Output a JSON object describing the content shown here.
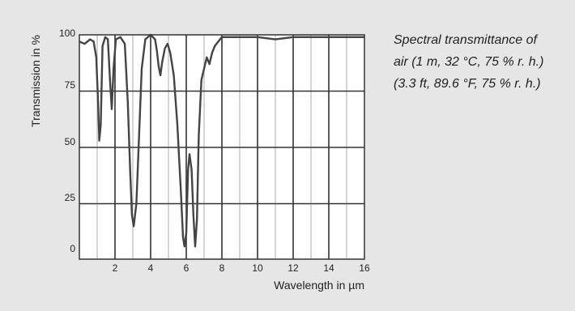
{
  "chart_data": {
    "type": "line",
    "xlabel": "Wavelength in µm",
    "ylabel": "Transmission in %",
    "xlim": [
      0,
      16
    ],
    "ylim": [
      0,
      100
    ],
    "x_ticks": [
      2,
      4,
      6,
      8,
      10,
      12,
      14,
      16
    ],
    "y_ticks": [
      0,
      25,
      50,
      75,
      100
    ],
    "grid": true,
    "series": [
      {
        "values": [
          [
            0.0,
            97
          ],
          [
            0.3,
            96
          ],
          [
            0.6,
            98
          ],
          [
            0.8,
            97
          ],
          [
            0.95,
            90
          ],
          [
            1.05,
            70
          ],
          [
            1.12,
            53
          ],
          [
            1.2,
            60
          ],
          [
            1.3,
            95
          ],
          [
            1.45,
            99
          ],
          [
            1.6,
            98
          ],
          [
            1.72,
            80
          ],
          [
            1.82,
            67
          ],
          [
            1.92,
            85
          ],
          [
            2.05,
            98
          ],
          [
            2.3,
            99
          ],
          [
            2.55,
            96
          ],
          [
            2.72,
            70
          ],
          [
            2.85,
            40
          ],
          [
            2.95,
            20
          ],
          [
            3.05,
            15
          ],
          [
            3.2,
            25
          ],
          [
            3.35,
            55
          ],
          [
            3.5,
            85
          ],
          [
            3.7,
            98
          ],
          [
            4.0,
            100
          ],
          [
            4.25,
            98
          ],
          [
            4.35,
            93
          ],
          [
            4.45,
            86
          ],
          [
            4.55,
            82
          ],
          [
            4.65,
            88
          ],
          [
            4.8,
            94
          ],
          [
            4.95,
            96
          ],
          [
            5.1,
            92
          ],
          [
            5.3,
            82
          ],
          [
            5.5,
            60
          ],
          [
            5.7,
            30
          ],
          [
            5.82,
            10
          ],
          [
            5.9,
            6
          ],
          [
            6.0,
            12
          ],
          [
            6.1,
            40
          ],
          [
            6.18,
            47
          ],
          [
            6.3,
            40
          ],
          [
            6.4,
            20
          ],
          [
            6.5,
            6
          ],
          [
            6.6,
            18
          ],
          [
            6.7,
            55
          ],
          [
            6.85,
            80
          ],
          [
            7.0,
            85
          ],
          [
            7.15,
            90
          ],
          [
            7.3,
            87
          ],
          [
            7.45,
            92
          ],
          [
            7.6,
            95
          ],
          [
            7.8,
            97
          ],
          [
            8.0,
            99
          ],
          [
            10.0,
            99
          ],
          [
            11.0,
            98
          ],
          [
            12.0,
            99
          ],
          [
            14.0,
            99
          ],
          [
            16.0,
            99
          ]
        ]
      }
    ]
  },
  "caption": {
    "lines": [
      "Spectral transmittance of",
      "air (1 m, 32 °C, 75 % r. h.)",
      "(3.3 ft, 89.6 °F, 75 % r. h.)"
    ]
  },
  "colors": {
    "background": "#e6e6e6",
    "plot_background": "#ffffff",
    "grid_major": "#333333",
    "grid_minor": "#9a9a9a",
    "line": "#444444"
  }
}
